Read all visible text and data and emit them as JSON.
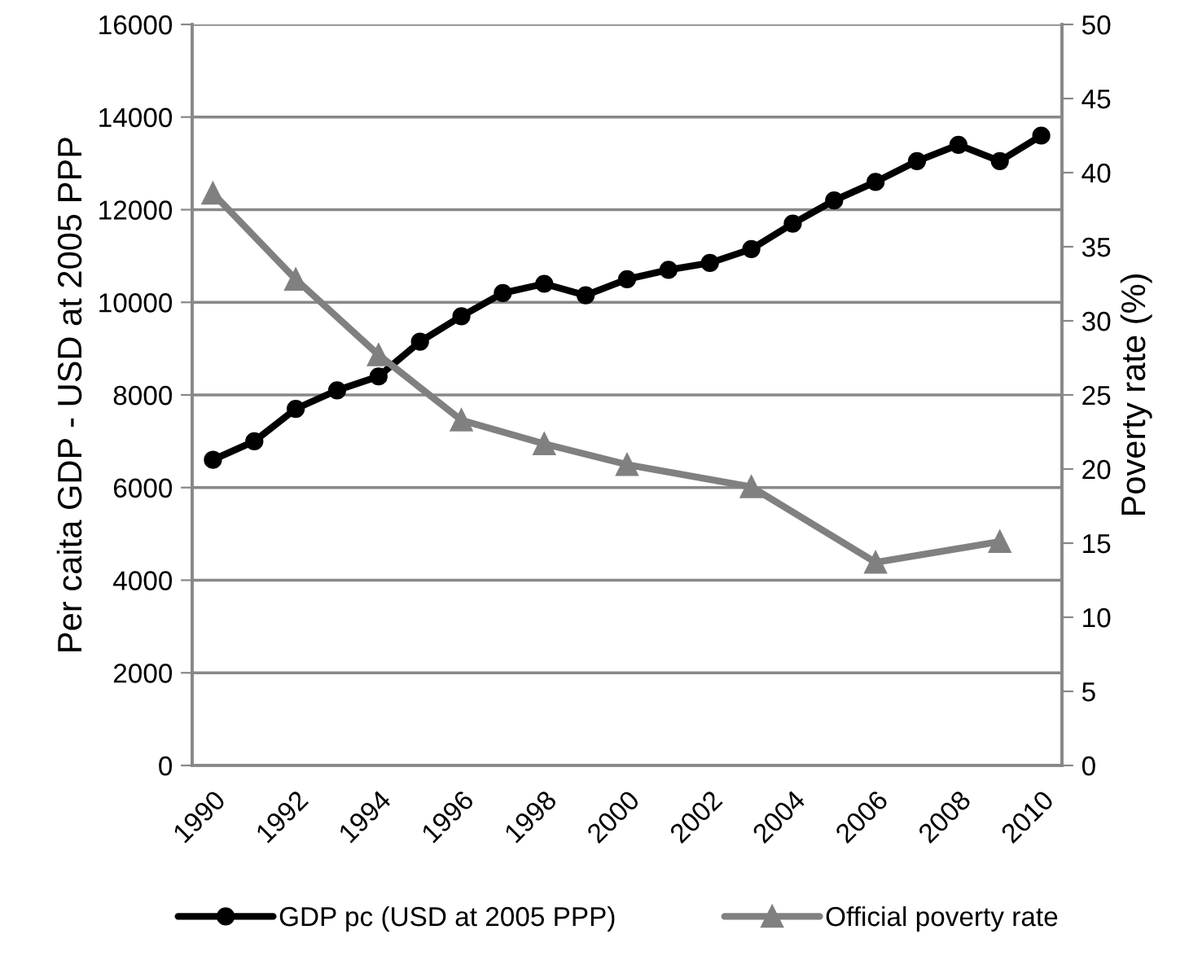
{
  "chart_data": {
    "type": "line",
    "ylabel": "Per caita GDP - USD at 2005 PPP",
    "y2label": "Poverty rate (%)",
    "categories": [
      "1990",
      null,
      "1992",
      null,
      "1994",
      null,
      "1996",
      null,
      "1998",
      null,
      "2000",
      null,
      "2002",
      null,
      "2004",
      null,
      "2006",
      null,
      "2008",
      null,
      "2010"
    ],
    "series": [
      {
        "name": "GDP pc (USD at 2005 PPP)",
        "color": "#000000",
        "marker": "circle",
        "values": [
          6600,
          7000,
          7700,
          8100,
          8400,
          9150,
          9700,
          10200,
          10400,
          10150,
          10500,
          10700,
          10850,
          11150,
          11700,
          12200,
          12600,
          13050,
          13400,
          13050,
          13600
        ]
      },
      {
        "name": "Official poverty rate",
        "color": "#808080",
        "marker": "triangle",
        "axis": "y2",
        "values": [
          38.6,
          null,
          32.8,
          null,
          27.7,
          null,
          23.3,
          null,
          21.7,
          null,
          20.3,
          null,
          null,
          18.8,
          null,
          null,
          13.7,
          null,
          null,
          15.1,
          null
        ]
      }
    ],
    "ylim": [
      0,
      16000
    ],
    "yticks": [
      0,
      2000,
      4000,
      6000,
      8000,
      10000,
      12000,
      14000,
      16000
    ],
    "y2lim": [
      0,
      50
    ],
    "y2ticks": [
      0,
      5,
      10,
      15,
      20,
      25,
      30,
      35,
      40,
      45,
      50
    ],
    "grid": "y",
    "legend": "bottom",
    "line_style": "solid"
  }
}
